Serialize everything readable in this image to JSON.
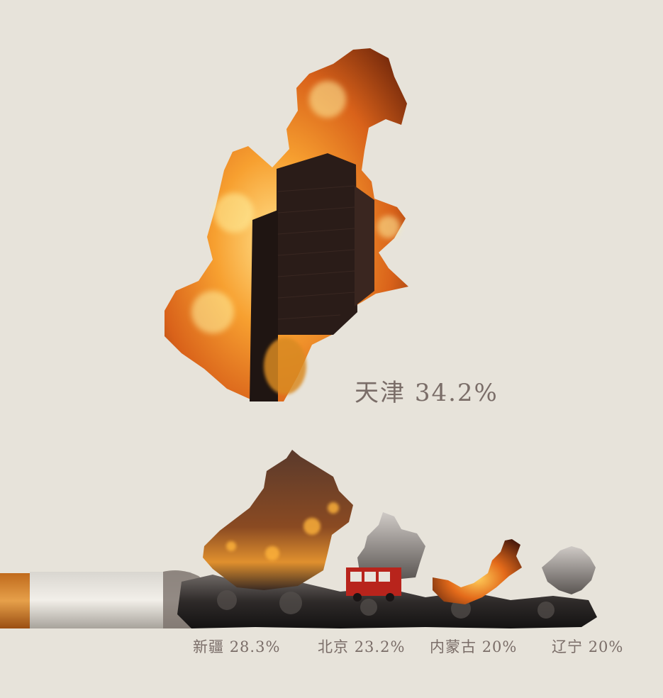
{
  "regions": {
    "tianjin": {
      "name": "天津",
      "percent": "34.2%"
    },
    "xinjiang": {
      "name": "新疆",
      "percent": "28.3%"
    },
    "beijing": {
      "name": "北京",
      "percent": "23.2%"
    },
    "neimenggu": {
      "name": "内蒙古",
      "percent": "20%"
    },
    "liaoning": {
      "name": "辽宁",
      "percent": "20%"
    }
  },
  "colors": {
    "background": "#e7e3da",
    "text": "#7a6d68",
    "fire": "#f08a1c",
    "smoke": "#2b2726",
    "cigarette_filter": "#d98a2e"
  }
}
